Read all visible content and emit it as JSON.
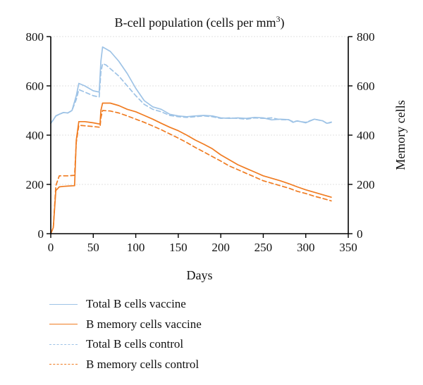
{
  "chart_data": {
    "type": "line",
    "title": "B-cell population (cells per mm",
    "title_sup": "3",
    "title_close": ")",
    "xlabel": "Days",
    "ylabel_left": "",
    "ylabel_right": "Memory cells",
    "xlim": [
      0,
      350
    ],
    "ylim_left": [
      0,
      800
    ],
    "ylim_right": [
      0,
      800
    ],
    "x_ticks": [
      0,
      50,
      100,
      150,
      200,
      250,
      300,
      350
    ],
    "y_ticks_left": [
      0,
      200,
      400,
      600,
      800
    ],
    "y_ticks_right": [
      0,
      200,
      400,
      600,
      800
    ],
    "grid": true,
    "legend_position": "bottom-left",
    "series": [
      {
        "name": "Total B cells vaccine",
        "color": "#9ec3e6",
        "dash": "solid",
        "x": [
          0,
          3,
          6,
          10,
          15,
          20,
          25,
          30,
          33,
          40,
          50,
          57,
          59,
          61,
          65,
          70,
          80,
          90,
          100,
          110,
          120,
          130,
          140,
          150,
          160,
          170,
          180,
          190,
          200,
          210,
          220,
          230,
          240,
          250,
          260,
          270,
          280,
          285,
          290,
          300,
          310,
          320,
          325,
          330
        ],
        "y": [
          448,
          462,
          478,
          485,
          492,
          490,
          500,
          560,
          610,
          600,
          580,
          575,
          700,
          758,
          750,
          740,
          700,
          650,
          590,
          540,
          515,
          505,
          485,
          478,
          475,
          478,
          480,
          478,
          470,
          468,
          470,
          468,
          472,
          470,
          462,
          465,
          463,
          452,
          458,
          450,
          465,
          458,
          448,
          453
        ]
      },
      {
        "name": "B memory cells vaccine",
        "color": "#f07c22",
        "dash": "solid",
        "x": [
          0,
          3,
          6,
          10,
          15,
          20,
          28,
          30,
          33,
          40,
          50,
          58,
          59,
          61,
          70,
          80,
          90,
          100,
          110,
          120,
          130,
          140,
          150,
          160,
          170,
          180,
          190,
          200,
          210,
          220,
          230,
          240,
          250,
          260,
          270,
          280,
          290,
          300,
          310,
          320,
          330
        ],
        "y": [
          0,
          25,
          175,
          190,
          192,
          193,
          195,
          380,
          455,
          455,
          450,
          445,
          500,
          530,
          530,
          520,
          505,
          495,
          480,
          465,
          448,
          432,
          418,
          400,
          380,
          363,
          345,
          320,
          300,
          280,
          265,
          250,
          235,
          225,
          215,
          203,
          190,
          178,
          168,
          158,
          148
        ]
      },
      {
        "name": "Total B cells control",
        "color": "#9ec3e6",
        "dash": "dashed",
        "x": [
          0,
          3,
          6,
          10,
          15,
          20,
          25,
          30,
          33,
          40,
          50,
          57,
          59,
          61,
          65,
          70,
          80,
          90,
          100,
          110,
          120,
          130,
          140,
          150,
          160,
          170,
          180,
          190,
          200,
          210,
          220,
          230,
          240,
          250,
          260,
          270,
          280,
          285,
          290,
          300,
          310,
          320,
          325,
          330
        ],
        "y": [
          448,
          462,
          478,
          485,
          492,
          490,
          500,
          545,
          585,
          575,
          560,
          555,
          655,
          690,
          685,
          670,
          640,
          600,
          560,
          525,
          505,
          495,
          480,
          475,
          472,
          475,
          478,
          475,
          468,
          470,
          468,
          465,
          470,
          468,
          470,
          463,
          462,
          455,
          457,
          452,
          465,
          458,
          447,
          452
        ]
      },
      {
        "name": "B memory cells control",
        "color": "#f07c22",
        "dash": "dashed",
        "x": [
          0,
          3,
          6,
          10,
          15,
          20,
          28,
          30,
          33,
          40,
          50,
          58,
          59,
          61,
          70,
          80,
          90,
          100,
          110,
          120,
          130,
          140,
          150,
          160,
          170,
          180,
          190,
          200,
          210,
          220,
          230,
          240,
          250,
          260,
          270,
          280,
          290,
          300,
          310,
          320,
          330
        ],
        "y": [
          0,
          25,
          195,
          235,
          235,
          235,
          237,
          370,
          440,
          438,
          435,
          432,
          470,
          500,
          498,
          490,
          478,
          465,
          452,
          437,
          422,
          405,
          388,
          370,
          350,
          332,
          313,
          295,
          275,
          260,
          245,
          230,
          215,
          205,
          195,
          185,
          172,
          163,
          152,
          143,
          133
        ]
      }
    ]
  }
}
